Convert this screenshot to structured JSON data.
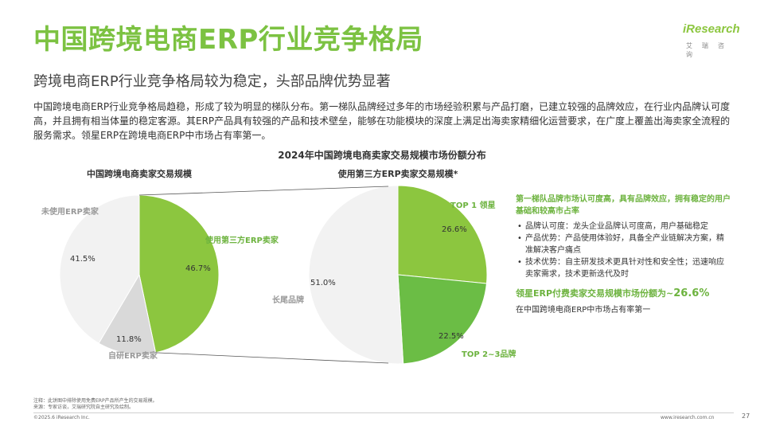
{
  "header": {
    "title": "中国跨境电商ERP行业竞争格局",
    "subtitle": "跨境电商ERP行业竞争格局较为稳定，头部品牌优势显著",
    "intro": "中国跨境电商ERP行业竞争格局趋稳，形成了较为明显的梯队分布。第一梯队品牌经过多年的市场经验积累与产品打磨，已建立较强的品牌效应，在行业内品牌认可度高，并且拥有相当体量的稳定客源。其ERP产品具有较强的产品和技术壁垒，能够在功能模块的深度上满足出海卖家精细化运营要求，在广度上覆盖出海卖家全流程的服务需求。领星ERP在跨境电商ERP中市场占有率第一。"
  },
  "logo": {
    "word": "iResearch",
    "sub": "艾瑞咨询"
  },
  "colors": {
    "accent": "#7cc242",
    "dark_green": "#6bbd45",
    "light_gray": "#f2f2f2",
    "mid_gray": "#d9d9d9"
  },
  "chart_data": [
    {
      "type": "pie",
      "title": "中国跨境电商卖家交易规模",
      "slices": [
        {
          "label": "使用第三方ERP卖家",
          "value": 46.7,
          "display": "46.7%"
        },
        {
          "label": "自研ERP卖家",
          "value": 11.8,
          "display": "11.8%"
        },
        {
          "label": "未使用ERP卖家",
          "value": 41.5,
          "display": "41.5%"
        }
      ]
    },
    {
      "type": "pie",
      "title": "使用第三方ERP卖家交易规模*",
      "slices": [
        {
          "label": "TOP 1 领星",
          "value": 26.6,
          "display": "26.6%"
        },
        {
          "label": "TOP 2~3品牌",
          "value": 22.5,
          "display": "22.5%"
        },
        {
          "label": "长尾品牌",
          "value": 51.0,
          "display": "51.0%"
        }
      ]
    }
  ],
  "chart_title": "2024年中国跨境电商卖家交易规模市场份额分布",
  "panel": {
    "heading": "第一梯队品牌市场认可度高，具有品牌效应，拥有稳定的用户基础和较高市占率",
    "bullets": [
      "品牌认可度：龙头企业品牌认可度高，用户基础稳定",
      "产品优势：产品使用体验好，具备全产业链解决方案，精准解决客户痛点",
      "技术优势：自主研发技术更具针对性和安全性；迅速响应卖家需求，技术更新迭代及时"
    ],
    "highlight_prefix": "领星ERP付费卖家交易规模市场份额为~",
    "highlight_value": "26.6%",
    "highlight_line2": "在中国跨境电商ERP中市场占有率第一"
  },
  "footer": {
    "note1": "注释：此饼图中排除使用免费ERP产品所产生的交易规模。",
    "note2": "来源：专家访谈，艾瑞研究院自主研究及绘制。",
    "copyright": "©2025.6 iResearch Inc.",
    "site": "www.iresearch.com.cn",
    "page": "27"
  }
}
